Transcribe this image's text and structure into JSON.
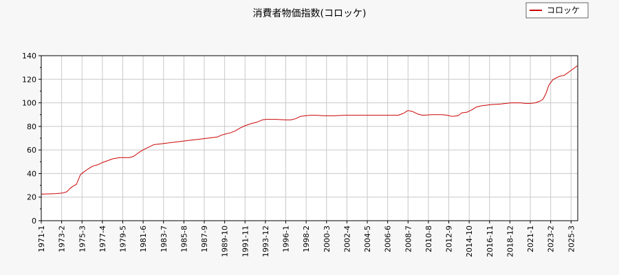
{
  "chart_data": {
    "type": "line",
    "title": "消費者物価指数(コロッケ)",
    "xlabel": "",
    "ylabel": "",
    "ylim": [
      0,
      140
    ],
    "yticks": [
      0,
      20,
      40,
      60,
      80,
      100,
      120,
      140
    ],
    "xticks": [
      "1971-1",
      "1973-2",
      "1975-3",
      "1977-4",
      "1979-5",
      "1981-6",
      "1983-7",
      "1985-8",
      "1987-9",
      "1989-10",
      "1991-11",
      "1993-12",
      "1996-1",
      "1998-2",
      "2000-3",
      "2002-4",
      "2004-5",
      "2006-6",
      "2008-7",
      "2010-8",
      "2012-9",
      "2014-10",
      "2016-11",
      "2018-12",
      "2021-1",
      "2023-2",
      "2025-3"
    ],
    "grid": true,
    "legend_position": "top-right",
    "series": [
      {
        "name": "コロッケ",
        "color": "#cc0000",
        "x": [
          1971.0,
          1972.5,
          1973.2,
          1973.6,
          1973.9,
          1974.2,
          1974.6,
          1975.0,
          1975.3,
          1975.8,
          1976.3,
          1976.8,
          1977.3,
          1977.8,
          1978.3,
          1979.0,
          1979.6,
          1980.0,
          1980.2,
          1980.4,
          1980.6,
          1981.0,
          1981.5,
          1982.0,
          1982.5,
          1983.0,
          1983.5,
          1984.0,
          1985.0,
          1986.0,
          1987.0,
          1987.5,
          1988.0,
          1988.5,
          1989.0,
          1989.4,
          1989.8,
          1990.3,
          1990.8,
          1991.3,
          1991.8,
          1992.5,
          1993.0,
          1993.6,
          1994.0,
          1995.0,
          1996.0,
          1996.5,
          1997.0,
          1997.5,
          1998.0,
          1998.5,
          1999.0,
          2000.0,
          2001.0,
          2002.0,
          2003.0,
          2004.0,
          2005.0,
          2006.0,
          2007.0,
          2007.5,
          2008.0,
          2008.5,
          2009.0,
          2009.5,
          2010.0,
          2011.0,
          2012.0,
          2012.5,
          2013.0,
          2013.6,
          2014.0,
          2014.5,
          2015.0,
          2015.5,
          2016.0,
          2017.0,
          2018.0,
          2019.0,
          2020.0,
          2020.5,
          2021.0,
          2021.5,
          2022.0,
          2022.3,
          2022.6,
          2022.9,
          2023.3,
          2023.6,
          2024.0,
          2024.5,
          2025.0,
          2025.5,
          2025.8
        ],
        "y": [
          22.5,
          23.0,
          23.5,
          24.5,
          27.0,
          29.0,
          31.0,
          39.0,
          41.0,
          44.0,
          46.5,
          47.5,
          49.5,
          51.0,
          52.5,
          53.5,
          53.5,
          53.5,
          54.0,
          54.5,
          55.5,
          58.0,
          60.5,
          62.5,
          64.5,
          65.0,
          65.5,
          66.0,
          67.0,
          68.0,
          69.0,
          69.5,
          70.0,
          70.5,
          71.0,
          72.5,
          73.5,
          74.5,
          76.0,
          78.5,
          80.5,
          82.5,
          83.5,
          85.5,
          86.0,
          86.0,
          85.5,
          85.5,
          86.5,
          88.5,
          89.0,
          89.5,
          89.5,
          89.0,
          89.0,
          89.5,
          89.5,
          89.5,
          89.5,
          89.5,
          89.5,
          89.5,
          91.0,
          93.5,
          92.5,
          90.5,
          89.5,
          90.0,
          90.0,
          89.5,
          88.5,
          89.0,
          91.5,
          92.0,
          94.0,
          96.5,
          97.5,
          98.5,
          99.0,
          100.0,
          100.0,
          99.5,
          99.5,
          100.0,
          101.5,
          103.0,
          108.0,
          115.0,
          119.5,
          121.0,
          122.5,
          123.5,
          126.5,
          129.5,
          131.5
        ]
      }
    ]
  }
}
